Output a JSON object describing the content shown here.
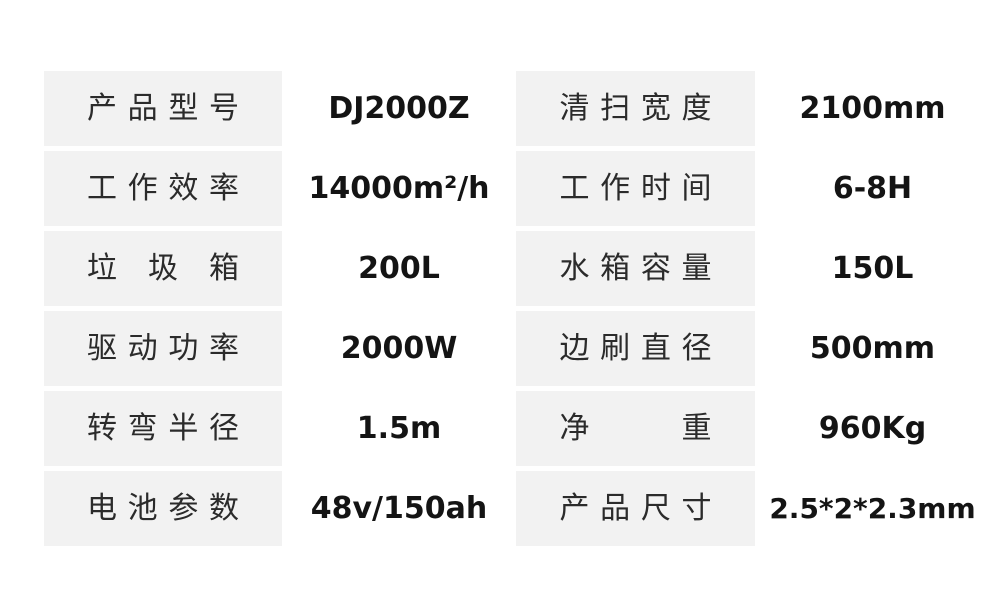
{
  "page": {
    "background_color": "#ffffff",
    "label_box_color": "#f2f2f2",
    "label_text_color": "#2b2b2b",
    "value_text_color": "#141414"
  },
  "spec_table": {
    "rows": [
      {
        "left": {
          "label": "产品型号",
          "value": "DJ2000Z"
        },
        "right": {
          "label": "清扫宽度",
          "value": "2100mm"
        }
      },
      {
        "left": {
          "label": "工作效率",
          "value": "14000m²/h"
        },
        "right": {
          "label": "工作时间",
          "value": "6-8H"
        }
      },
      {
        "left": {
          "label": "垃 圾 箱",
          "value": "200L"
        },
        "right": {
          "label": "水箱容量",
          "value": "150L"
        }
      },
      {
        "left": {
          "label": "驱动功率",
          "value": "2000W"
        },
        "right": {
          "label": "边刷直径",
          "value": "500mm"
        }
      },
      {
        "left": {
          "label": "转弯半径",
          "value": "1.5m"
        },
        "right": {
          "label": "净 重",
          "value": "960Kg"
        }
      },
      {
        "left": {
          "label": "电池参数",
          "value": "48v/150ah"
        },
        "right": {
          "label": "产品尺寸",
          "value": "2.5*2*2.3mm"
        }
      }
    ]
  }
}
